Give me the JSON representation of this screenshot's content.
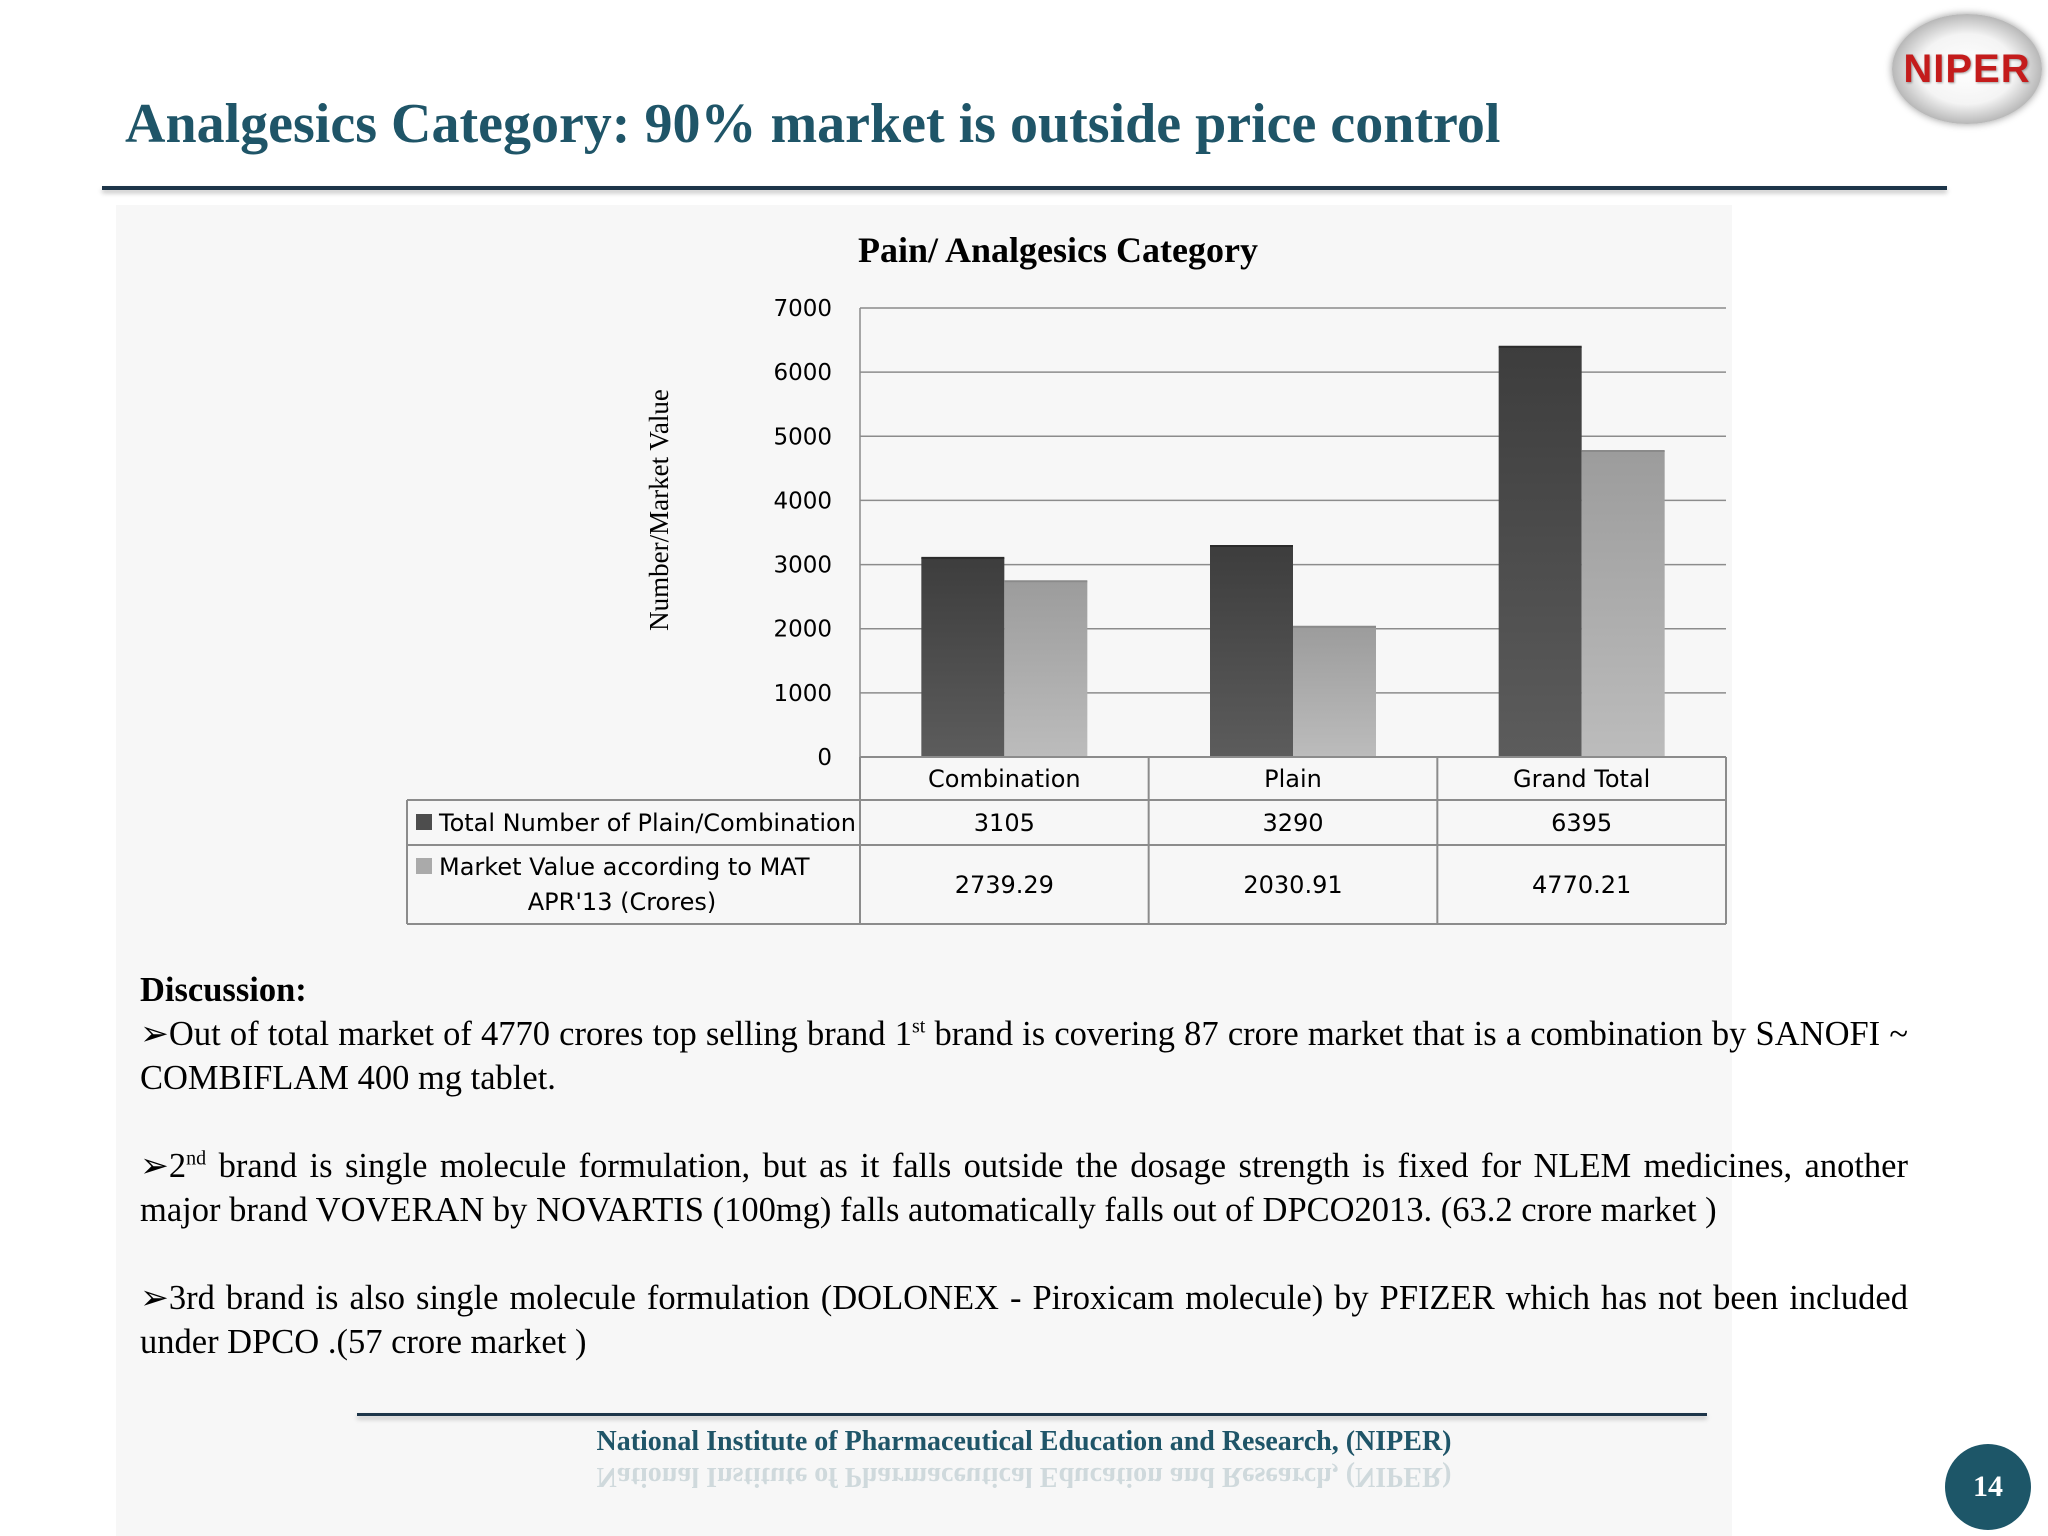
{
  "header": {
    "title": "Analgesics Category: 90% market  is outside price control",
    "logo_text": "NIPER"
  },
  "colors": {
    "title": "#1f5568",
    "series_dark": "#4d4d4d",
    "series_light": "#aaaaaa",
    "badge": "#1d5668"
  },
  "chart_data": {
    "type": "bar",
    "title": "Pain/ Analgesics Category",
    "xlabel": "",
    "ylabel": "Number/Market Value",
    "categories": [
      "Combination",
      "Plain",
      "Grand Total"
    ],
    "series": [
      {
        "name": "Total Number of Plain/Combination",
        "values": [
          3105,
          3290,
          6395
        ],
        "display": [
          "3105",
          "3290",
          "6395"
        ]
      },
      {
        "name": "Market Value according to MAT APR'13  (Crores)",
        "name_lines": [
          "Market Value according to MAT",
          "APR'13  (Crores)"
        ],
        "values": [
          2739.29,
          2030.91,
          4770.21
        ],
        "display": [
          "2739.29",
          "2030.91",
          "4770.21"
        ]
      }
    ],
    "ylim": [
      0,
      7000
    ],
    "yticks": [
      0,
      1000,
      2000,
      3000,
      4000,
      5000,
      6000,
      7000
    ],
    "grid": true,
    "legend": "data table below chart"
  },
  "discussion": {
    "heading": "Discussion:",
    "items": [
      {
        "bullet": "➢",
        "a": "Out of total market of 4770 crores top selling brand 1",
        "sup": "st",
        "b": " brand is covering 87 crore market that is a combination by SANOFI ~ COMBIFLAM 400 mg tablet."
      },
      {
        "bullet": "➢",
        "a": "2",
        "sup": "nd",
        "b": " brand is single molecule formulation, but as it falls outside the dosage strength is fixed for NLEM medicines, another major brand VOVERAN by NOVARTIS (100mg) falls automatically falls out of DPCO2013. (63.2 crore market )"
      },
      {
        "bullet": "➢",
        "a": "3rd brand is also single molecule  formulation (DOLONEX - Piroxicam molecule) by PFIZER which has not been included under DPCO .(57 crore market )",
        "sup": "",
        "b": ""
      }
    ]
  },
  "footer": {
    "text": "National Institute of Pharmaceutical Education and Research, (NIPER)",
    "page_number": "14"
  }
}
